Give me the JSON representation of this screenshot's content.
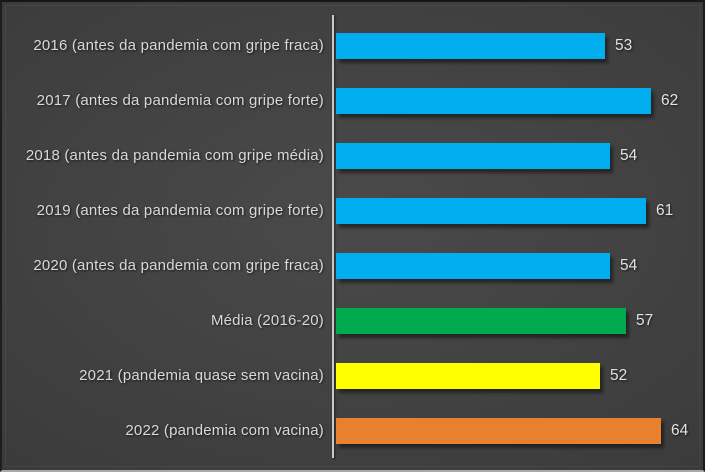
{
  "chart_data": {
    "type": "bar",
    "orientation": "horizontal",
    "title": "",
    "xlabel": "",
    "ylabel": "",
    "grid": false,
    "legend": false,
    "xlim": [
      0,
      73
    ],
    "categories": [
      "2016 (antes da pandemia com gripe fraca)",
      "2017 (antes da pandemia com gripe forte)",
      "2018 (antes da pandemia com gripe média)",
      "2019 (antes da pandemia com gripe forte)",
      "2020 (antes da pandemia com gripe fraca)",
      "Média (2016-20)",
      "2021 (pandemia quase sem vacina)",
      "2022 (pandemia com vacina)"
    ],
    "values": [
      53,
      62,
      54,
      61,
      54,
      57,
      52,
      64
    ],
    "bar_colors": [
      "#00AEEF",
      "#00AEEF",
      "#00AEEF",
      "#00AEEF",
      "#00AEEF",
      "#00AB50",
      "#FFFF00",
      "#E8802E"
    ],
    "value_labels_shown": true
  },
  "colors": {
    "category_label": "#D9D9D9",
    "value_label": "#E2E2E2",
    "axis_line": "#C9C9C9",
    "background_center": "#4A4A4A",
    "background_mid": "#3C3C3C",
    "background_edge": "#262626"
  }
}
